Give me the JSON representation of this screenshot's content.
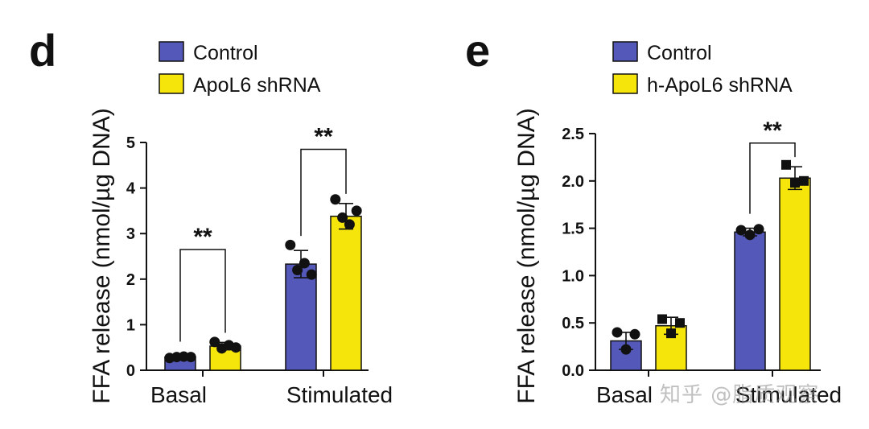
{
  "chart_data": [
    {
      "panel": "d",
      "type": "bar",
      "ylabel": "FFA release (nmol/µg DNA)",
      "ylim": [
        0,
        5
      ],
      "yticks": [
        0,
        1,
        2,
        3,
        4,
        5
      ],
      "ytick_labels": [
        "0",
        "1",
        "2",
        "3",
        "4",
        "5"
      ],
      "categories": [
        "Basal",
        "Stimulated"
      ],
      "series": [
        {
          "name": "Control",
          "color": "#5458b8",
          "marker": "circle",
          "values": [
            0.29,
            2.33
          ],
          "errors": [
            0.02,
            0.3
          ],
          "points": [
            [
              0.27,
              0.29,
              0.3,
              0.29
            ],
            [
              2.75,
              2.2,
              2.35,
              2.1
            ]
          ]
        },
        {
          "name": "ApoL6 shRNA",
          "color": "#f5e50a",
          "marker": "circle",
          "values": [
            0.53,
            3.38
          ],
          "errors": [
            0.08,
            0.28
          ],
          "points": [
            [
              0.62,
              0.48,
              0.55,
              0.5
            ],
            [
              3.75,
              3.35,
              3.2,
              3.5
            ]
          ]
        }
      ],
      "significance": [
        {
          "category": 0,
          "label": "**",
          "y_bracket": 2.65
        },
        {
          "category": 1,
          "label": "**",
          "y_bracket": 4.85
        }
      ],
      "legend": "top-center",
      "grid": false
    },
    {
      "panel": "e",
      "type": "bar",
      "ylabel": "FFA release (nmol/µg DNA)",
      "ylim": [
        0,
        2.5
      ],
      "yticks": [
        0,
        0.5,
        1,
        1.5,
        2,
        2.5
      ],
      "ytick_labels": [
        "0.0",
        "0.5",
        "1.0",
        "1.5",
        "2.0",
        "2.5"
      ],
      "categories": [
        "Basal",
        "Stimulated"
      ],
      "series": [
        {
          "name": "Control",
          "color": "#5458b8",
          "marker": "circle",
          "values": [
            0.31,
            1.46
          ],
          "errors": [
            0.09,
            0.04
          ],
          "points": [
            [
              0.4,
              0.22,
              0.38
            ],
            [
              1.48,
              1.43,
              1.49
            ]
          ]
        },
        {
          "name": "h-ApoL6 shRNA",
          "color": "#f5e50a",
          "marker": "square",
          "values": [
            0.47,
            2.03
          ],
          "errors": [
            0.09,
            0.12
          ],
          "points": [
            [
              0.54,
              0.39,
              0.5
            ],
            [
              2.17,
              1.98,
              2.0
            ]
          ]
        }
      ],
      "significance": [
        {
          "category": 1,
          "label": "**",
          "y_bracket": 2.4
        }
      ],
      "legend": "top-center",
      "grid": false
    }
  ],
  "panel_labels": [
    "d",
    "e"
  ],
  "watermark": "知乎 @脂质观察"
}
